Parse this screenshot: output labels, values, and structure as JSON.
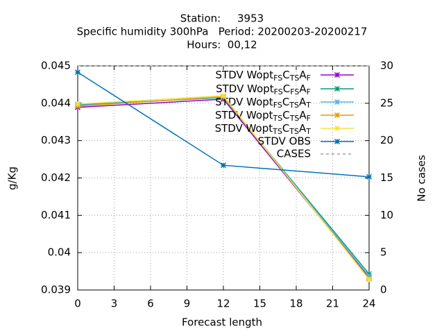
{
  "chart_data": {
    "type": "line",
    "title": [
      "Station:     3953",
      "Specific humidity 300hPa   Period: 20200203-20200217",
      "Hours:  00,12"
    ],
    "xlabel": "Forecast length",
    "ylabel": "g/Kg",
    "y2label": "No cases",
    "x": [
      0,
      12,
      24
    ],
    "xlim": [
      0,
      24
    ],
    "xticks": [
      0,
      3,
      6,
      9,
      12,
      15,
      18,
      21,
      24
    ],
    "ylim": [
      0.039,
      0.045
    ],
    "yticks": [
      0.039,
      0.04,
      0.041,
      0.042,
      0.043,
      0.044,
      0.045
    ],
    "y2lim": [
      0,
      30
    ],
    "y2ticks": [
      0,
      5,
      10,
      15,
      20,
      25,
      30
    ],
    "grid": true,
    "legend": "top-right",
    "series": [
      {
        "name": "STDV WoptFSCTSAF",
        "color": "#9400d3",
        "values": [
          0.04389,
          0.04411,
          0.03933
        ]
      },
      {
        "name": "STDV WoptFSCFSAF",
        "color": "#009e73",
        "values": [
          0.04396,
          0.04415,
          0.03943
        ]
      },
      {
        "name": "STDV WoptFSCTSAT",
        "color": "#56b4e9",
        "values": [
          0.04394,
          0.04416,
          0.03937
        ]
      },
      {
        "name": "STDV WoptTSCTSAF",
        "color": "#e69f00",
        "values": [
          0.04392,
          0.04418,
          0.0393
        ]
      },
      {
        "name": "STDV WoptTSCTSAT",
        "color": "#f0e442",
        "values": [
          0.04398,
          0.0442,
          0.03928
        ]
      },
      {
        "name": "STDV OBS",
        "color": "#0072b2",
        "values": [
          0.04483,
          0.04234,
          0.04203
        ]
      },
      {
        "name": "CASES",
        "color": "#a0a0a0",
        "axis": "y2",
        "dashed": true,
        "values": [
          30,
          30,
          30
        ]
      }
    ]
  }
}
